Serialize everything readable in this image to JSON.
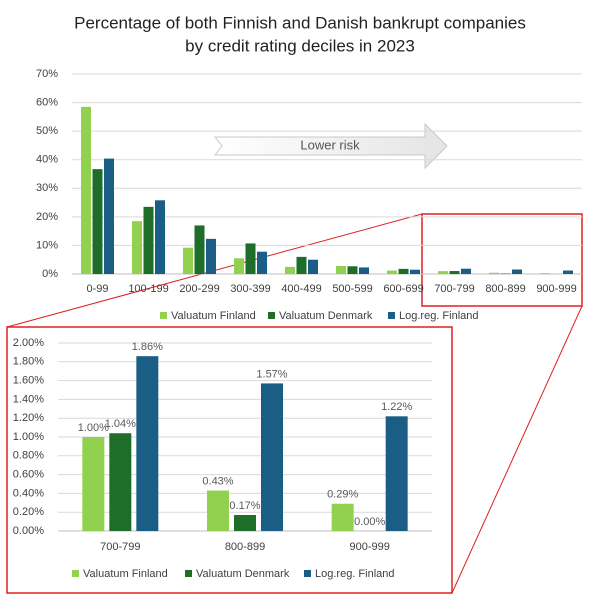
{
  "chart_data": [
    {
      "type": "bar",
      "title": [
        "Percentage of both Finnish and Danish bankrupt companies",
        "by credit rating deciles in 2023"
      ],
      "annotation": "Lower risk",
      "categories": [
        "0-99",
        "100-199",
        "200-299",
        "300-399",
        "400-499",
        "500-599",
        "600-699",
        "700-799",
        "800-899",
        "900-999"
      ],
      "series": [
        {
          "name": "Valuatum Finland",
          "color": "#92d050",
          "values": [
            58.5,
            18.5,
            9.2,
            5.5,
            2.5,
            2.8,
            1.2,
            1.0,
            0.43,
            0.29
          ]
        },
        {
          "name": "Valuatum Denmark",
          "color": "#1e6e2a",
          "values": [
            36.7,
            23.5,
            17.0,
            10.7,
            6.0,
            2.7,
            1.8,
            1.04,
            0.17,
            0.0
          ]
        },
        {
          "name": "Log.reg. Finland",
          "color": "#1b5e85",
          "values": [
            40.4,
            25.8,
            12.3,
            7.8,
            5.0,
            2.3,
            1.5,
            1.86,
            1.57,
            1.22
          ]
        }
      ],
      "ylim": [
        0,
        70
      ],
      "yticks": [
        {
          "value": 0,
          "label": "0%"
        },
        {
          "value": 10,
          "label": "10%"
        },
        {
          "value": 20,
          "label": "20%"
        },
        {
          "value": 30,
          "label": "30%"
        },
        {
          "value": 40,
          "label": "40%"
        },
        {
          "value": 50,
          "label": "50%"
        },
        {
          "value": 60,
          "label": "60%"
        },
        {
          "value": 70,
          "label": "70%"
        }
      ],
      "grid": true,
      "legend": "bottom"
    },
    {
      "type": "bar",
      "categories": [
        "700-799",
        "800-899",
        "900-999"
      ],
      "series": [
        {
          "name": "Valuatum Finland",
          "color": "#92d050",
          "values": [
            1.0,
            0.43,
            0.29
          ],
          "value_labels": [
            "1.00%",
            "0.43%",
            "0.29%"
          ]
        },
        {
          "name": "Valuatum Denmark",
          "color": "#1e6e2a",
          "values": [
            1.04,
            0.17,
            0.0
          ],
          "value_labels": [
            "1.04%",
            "0.17%",
            "0.00%"
          ]
        },
        {
          "name": "Log.reg. Finland",
          "color": "#1b5e85",
          "values": [
            1.86,
            1.57,
            1.22
          ],
          "value_labels": [
            "1.86%",
            "1.57%",
            "1.22%"
          ]
        }
      ],
      "ylim": [
        0,
        2
      ],
      "yticks": [
        {
          "value": 0,
          "label": "0.00%"
        },
        {
          "value": 0.2,
          "label": "0.20%"
        },
        {
          "value": 0.4,
          "label": "0.40%"
        },
        {
          "value": 0.6,
          "label": "0.60%"
        },
        {
          "value": 0.8,
          "label": "0.80%"
        },
        {
          "value": 1.0,
          "label": "1.00%"
        },
        {
          "value": 1.2,
          "label": "1.20%"
        },
        {
          "value": 1.4,
          "label": "1.40%"
        },
        {
          "value": 1.6,
          "label": "1.60%"
        },
        {
          "value": 1.8,
          "label": "1.80%"
        },
        {
          "value": 2.0,
          "label": "2.00%"
        }
      ],
      "grid": true,
      "legend": "bottom"
    }
  ]
}
